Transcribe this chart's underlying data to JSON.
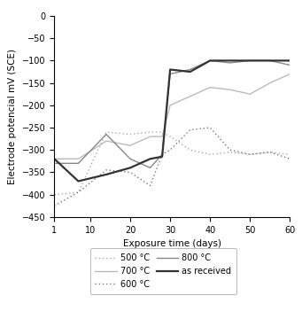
{
  "title": "",
  "xlabel": "Exposure time (days)",
  "ylabel": "Electrode potencial mV (SCE)",
  "xlim": [
    1,
    60
  ],
  "ylim": [
    -450,
    0
  ],
  "xticks": [
    1,
    10,
    20,
    30,
    40,
    50,
    60
  ],
  "yticks": [
    0,
    -50,
    -100,
    -150,
    -200,
    -250,
    -300,
    -350,
    -400,
    -450
  ],
  "series": {
    "500C": {
      "x": [
        1,
        7,
        14,
        20,
        25,
        28,
        30,
        35,
        40,
        45,
        50,
        55,
        60
      ],
      "y": [
        -400,
        -395,
        -260,
        -265,
        -260,
        -260,
        -270,
        -300,
        -310,
        -305,
        -310,
        -305,
        -310
      ],
      "color": "#aaaaaa",
      "linestyle": "dotted",
      "linewidth": 1.0,
      "label": "500 °C"
    },
    "600C": {
      "x": [
        1,
        7,
        14,
        20,
        25,
        28,
        30,
        35,
        40,
        45,
        50,
        55,
        60
      ],
      "y": [
        -425,
        -395,
        -345,
        -350,
        -380,
        -310,
        -300,
        -255,
        -250,
        -300,
        -310,
        -305,
        -320
      ],
      "color": "#777777",
      "linestyle": "dotted",
      "linewidth": 1.0,
      "label": "600 °C"
    },
    "700C": {
      "x": [
        1,
        7,
        14,
        20,
        25,
        28,
        30,
        35,
        40,
        45,
        50,
        55,
        60
      ],
      "y": [
        -320,
        -320,
        -280,
        -290,
        -270,
        -270,
        -200,
        -180,
        -160,
        -165,
        -175,
        -150,
        -130
      ],
      "color": "#bbbbbb",
      "linestyle": "solid",
      "linewidth": 1.0,
      "label": "700 °C"
    },
    "800C": {
      "x": [
        1,
        7,
        14,
        20,
        25,
        28,
        30,
        35,
        40,
        45,
        50,
        55,
        60
      ],
      "y": [
        -330,
        -330,
        -265,
        -320,
        -340,
        -310,
        -130,
        -120,
        -100,
        -105,
        -100,
        -100,
        -110
      ],
      "color": "#888888",
      "linestyle": "solid",
      "linewidth": 1.0,
      "label": "800 °C"
    },
    "as_received": {
      "x": [
        1,
        7,
        14,
        20,
        25,
        28,
        30,
        35,
        40,
        45,
        50,
        55,
        60
      ],
      "y": [
        -320,
        -370,
        -355,
        -340,
        -320,
        -315,
        -120,
        -125,
        -100,
        -100,
        -100,
        -100,
        -100
      ],
      "color": "#333333",
      "linestyle": "solid",
      "linewidth": 1.6,
      "label": "as received"
    }
  },
  "background_color": "#ffffff",
  "fig_width": 3.41,
  "fig_height": 3.6,
  "dpi": 100
}
